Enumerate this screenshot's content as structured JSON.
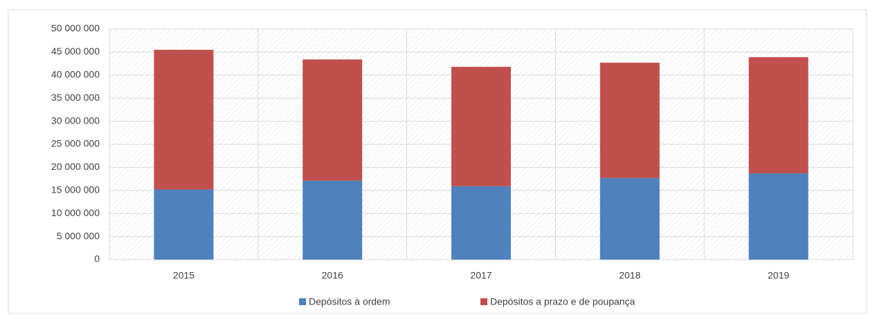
{
  "chart_data": {
    "type": "stacked_bar",
    "categories": [
      "2015",
      "2016",
      "2017",
      "2018",
      "2019"
    ],
    "series": [
      {
        "name": "Depósitos à ordem",
        "color": "#4f81bd",
        "values": [
          15200000,
          17100000,
          15900000,
          17700000,
          18700000
        ]
      },
      {
        "name": "Depósitos a prazo e de poupança",
        "color": "#c0504d",
        "values": [
          30300000,
          26300000,
          25900000,
          25000000,
          25200000
        ]
      }
    ],
    "ylim": [
      0,
      50000000
    ],
    "yticks": [
      0,
      {
        "value": 5000000,
        "label": "5 000 000"
      },
      {
        "value": 10000000,
        "label": "10 000 000"
      },
      {
        "value": 15000000,
        "label": "15 000 000"
      },
      {
        "value": 20000000,
        "label": "20 000 000"
      },
      {
        "value": 25000000,
        "label": "25 000 000"
      },
      {
        "value": 30000000,
        "label": "30 000 000"
      },
      {
        "value": 35000000,
        "label": "35 000 000"
      },
      {
        "value": 40000000,
        "label": "40 000 000"
      },
      {
        "value": 45000000,
        "label": "45 000 000"
      },
      {
        "value": 50000000,
        "label": "50 000 000"
      }
    ],
    "grid": true,
    "legend": "bottom"
  }
}
